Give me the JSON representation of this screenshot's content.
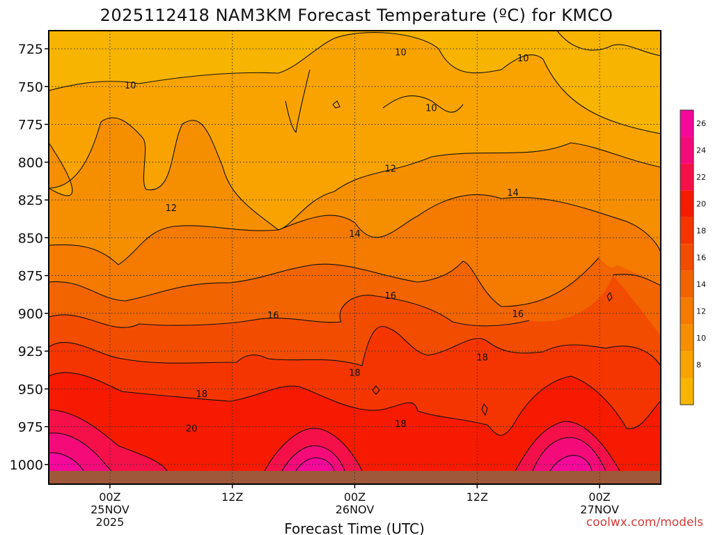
{
  "chart_data": {
    "type": "heatmap",
    "title": "2025112418 NAM3KM Forecast Temperature (ºC) for KMCO",
    "xlabel": "Forecast Time (UTC)",
    "ylabel": "",
    "y_ticks": [
      "725",
      "750",
      "775",
      "800",
      "825",
      "850",
      "875",
      "900",
      "925",
      "950",
      "975",
      "1000"
    ],
    "y_range_hpa": [
      713,
      1013
    ],
    "x_range_hours": [
      -6,
      54
    ],
    "x_ticks": [
      {
        "hour": 0,
        "lines": [
          "00Z",
          "25NOV",
          "2025"
        ]
      },
      {
        "hour": 12,
        "lines": [
          "12Z"
        ]
      },
      {
        "hour": 24,
        "lines": [
          "00Z",
          "26NOV"
        ]
      },
      {
        "hour": 36,
        "lines": [
          "12Z"
        ]
      },
      {
        "hour": 48,
        "lines": [
          "00Z",
          "27NOV"
        ]
      }
    ],
    "colorbar": {
      "levels": [
        6,
        8,
        10,
        12,
        14,
        16,
        18,
        20,
        22,
        24,
        26,
        28
      ],
      "labels": [
        "8",
        "10",
        "12",
        "14",
        "16",
        "18",
        "20",
        "22",
        "24",
        "26"
      ],
      "colors": [
        "#f7b400",
        "#f8a300",
        "#f68f00",
        "#f47a00",
        "#f26400",
        "#f24c00",
        "#f53500",
        "#f51a00",
        "#f5104a",
        "#f50a7a",
        "#f5089a"
      ]
    },
    "contour_labels": [
      {
        "text": "10",
        "hour": 28.5,
        "p": 727
      },
      {
        "text": "10",
        "hour": 40.5,
        "p": 731
      },
      {
        "text": "10",
        "hour": 2.0,
        "p": 749
      },
      {
        "text": "10",
        "hour": 31.5,
        "p": 764
      },
      {
        "text": "12",
        "hour": 27.5,
        "p": 804
      },
      {
        "text": "12",
        "hour": 6.0,
        "p": 830
      },
      {
        "text": "14",
        "hour": 39.5,
        "p": 820
      },
      {
        "text": "14",
        "hour": 24.0,
        "p": 847
      },
      {
        "text": "16",
        "hour": 27.5,
        "p": 888
      },
      {
        "text": "16",
        "hour": 16.0,
        "p": 901
      },
      {
        "text": "16",
        "hour": 40.0,
        "p": 900
      },
      {
        "text": "18",
        "hour": 36.5,
        "p": 929
      },
      {
        "text": "18",
        "hour": 24.0,
        "p": 939
      },
      {
        "text": "18",
        "hour": 9.0,
        "p": 953
      },
      {
        "text": "18",
        "hour": 28.5,
        "p": 973
      },
      {
        "text": "20",
        "hour": 8.0,
        "p": 976
      }
    ],
    "credit": "coolwx.com/models"
  }
}
